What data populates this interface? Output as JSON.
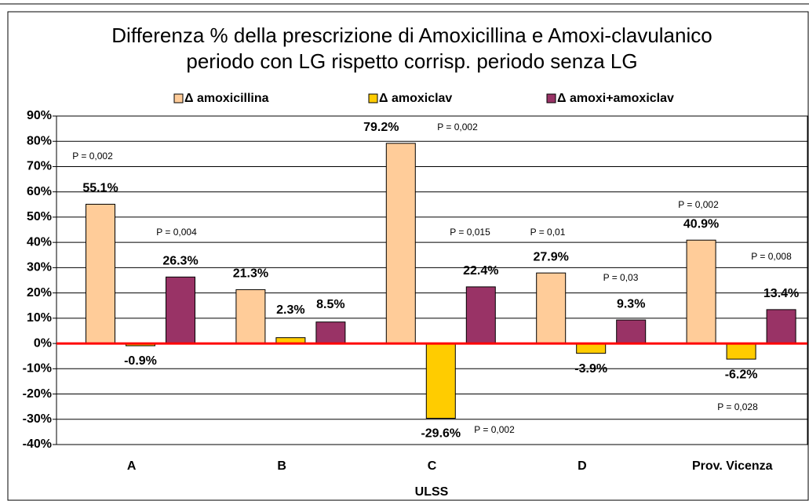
{
  "chart_data": {
    "type": "bar",
    "title": [
      "Differenza % della prescrizione di Amoxicillina e Amoxi-clavulanico",
      "periodo con LG rispetto corrisp. periodo senza LG"
    ],
    "xlabel": "ULSS",
    "categories": [
      "A",
      "B",
      "C",
      "D",
      "Prov. Vicenza"
    ],
    "series": [
      {
        "name": "Δ amoxicillina",
        "color": "#FFCC99",
        "values": [
          55.1,
          21.3,
          79.2,
          27.9,
          40.9
        ],
        "value_labels": [
          "55.1%",
          "21.3%",
          "79.2%",
          "27.9%",
          "40.9%"
        ]
      },
      {
        "name": "Δ amoxiclav",
        "color": "#FFCC00",
        "values": [
          -0.9,
          2.3,
          -29.6,
          -3.9,
          -6.2
        ],
        "value_labels": [
          "-0.9%",
          "2.3%",
          "-29.6%",
          "-3.9%",
          "-6.2%"
        ]
      },
      {
        "name": "Δ amoxi+amoxiclav",
        "color": "#993366",
        "values": [
          26.3,
          8.5,
          22.4,
          9.3,
          13.4
        ],
        "value_labels": [
          "26.3%",
          "8.5%",
          "22.4%",
          "9.3%",
          "13.4%"
        ]
      }
    ],
    "ylim": [
      -40,
      90
    ],
    "yticks": [
      {
        "value": -40,
        "label": "-40%"
      },
      {
        "value": -30,
        "label": "-30%"
      },
      {
        "value": -20,
        "label": "-20%"
      },
      {
        "value": -10,
        "label": "-10%"
      },
      {
        "value": 0,
        "label": "0%"
      },
      {
        "value": 10,
        "label": "10%"
      },
      {
        "value": 20,
        "label": "20%"
      },
      {
        "value": 30,
        "label": "30%"
      },
      {
        "value": 40,
        "label": "40%"
      },
      {
        "value": 50,
        "label": "50%"
      },
      {
        "value": 60,
        "label": "60%"
      },
      {
        "value": 70,
        "label": "70%"
      },
      {
        "value": 80,
        "label": "80%"
      },
      {
        "value": 90,
        "label": "90%"
      }
    ],
    "grid": true,
    "legend": "top",
    "annotations": [
      "P = 0,002",
      "P = 0,004",
      "P = 0,002",
      "P = 0,015",
      "P = 0,01",
      "P = 0,03",
      "P = 0,002",
      "P = 0,008",
      "P = 0,028",
      "P = 0,002"
    ]
  }
}
